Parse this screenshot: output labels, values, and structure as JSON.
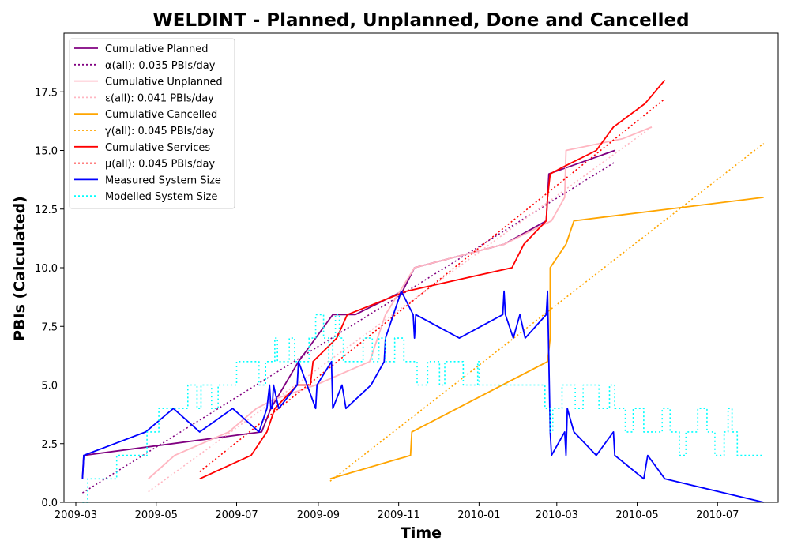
{
  "chart_data": {
    "type": "line",
    "title": "WELDINT - Planned, Unplanned, Done  and Cancelled",
    "xlabel": "Time",
    "ylabel": "PBIs (Calculated)",
    "xlim": [
      "2009-02-20",
      "2010-08-16"
    ],
    "ylim": [
      0,
      20
    ],
    "x_ticks": [
      "2009-03",
      "2009-05",
      "2009-07",
      "2009-09",
      "2009-11",
      "2010-01",
      "2010-03",
      "2010-05",
      "2010-07"
    ],
    "x_tick_dates": [
      "2009-03-01",
      "2009-05-01",
      "2009-07-01",
      "2009-09-01",
      "2009-11-01",
      "2010-01-01",
      "2010-03-01",
      "2010-05-01",
      "2010-07-01"
    ],
    "y_ticks": [
      "0.0",
      "2.5",
      "5.0",
      "7.5",
      "10.0",
      "12.5",
      "15.0",
      "17.5"
    ],
    "y_tick_values": [
      0,
      2.5,
      5,
      7.5,
      10,
      12.5,
      15,
      17.5
    ],
    "grid": false,
    "legend_position": "top-left",
    "series": [
      {
        "name": "Cumulative Planned",
        "color": "#800080",
        "style": "solid",
        "points": [
          [
            "2009-03-06",
            1
          ],
          [
            "2009-03-07",
            2
          ],
          [
            "2009-07-20",
            3
          ],
          [
            "2009-07-27",
            4
          ],
          [
            "2009-08-17",
            6
          ],
          [
            "2009-08-30",
            7
          ],
          [
            "2009-09-12",
            8
          ],
          [
            "2009-09-21",
            8
          ],
          [
            "2009-09-29",
            8
          ],
          [
            "2009-11-04",
            9
          ],
          [
            "2009-11-13",
            10
          ],
          [
            "2010-01-20",
            11
          ],
          [
            "2010-02-21",
            12
          ],
          [
            "2010-02-23",
            14
          ],
          [
            "2010-04-14",
            15
          ]
        ]
      },
      {
        "name": "α(all): 0.035 PBIs/day",
        "color": "#800080",
        "style": "dotted",
        "points": [
          [
            "2009-03-06",
            0.4
          ],
          [
            "2010-04-14",
            14.5
          ]
        ]
      },
      {
        "name": "Cumulative Unplanned",
        "color": "#ffb6c1",
        "style": "solid",
        "points": [
          [
            "2009-04-25",
            1
          ],
          [
            "2009-05-15",
            2
          ],
          [
            "2009-06-25",
            3
          ],
          [
            "2009-07-16",
            4
          ],
          [
            "2009-07-30",
            4.4
          ],
          [
            "2009-08-30",
            5
          ],
          [
            "2009-10-10",
            6
          ],
          [
            "2009-10-22",
            8
          ],
          [
            "2009-11-02",
            9
          ],
          [
            "2009-11-13",
            10
          ],
          [
            "2010-01-20",
            11
          ],
          [
            "2010-02-25",
            12
          ],
          [
            "2010-03-07",
            13
          ],
          [
            "2010-03-08",
            15
          ],
          [
            "2010-04-20",
            15.5
          ],
          [
            "2010-05-12",
            16
          ]
        ]
      },
      {
        "name": "ε(all): 0.041 PBIs/day",
        "color": "#ffb6c1",
        "style": "dotted",
        "points": [
          [
            "2009-04-25",
            0.45
          ],
          [
            "2010-05-12",
            16
          ]
        ]
      },
      {
        "name": "Cumulative Cancelled",
        "color": "#ffa500",
        "style": "solid",
        "points": [
          [
            "2009-09-10",
            1
          ],
          [
            "2009-11-10",
            2
          ],
          [
            "2009-11-11",
            3
          ],
          [
            "2010-02-22",
            6
          ],
          [
            "2010-02-24",
            7
          ],
          [
            "2010-02-24",
            10
          ],
          [
            "2010-03-08",
            11
          ],
          [
            "2010-03-14",
            12
          ],
          [
            "2010-08-05",
            13
          ]
        ]
      },
      {
        "name": "γ(all): 0.045 PBIs/day",
        "color": "#ffa500",
        "style": "dotted",
        "points": [
          [
            "2009-09-10",
            0.9
          ],
          [
            "2010-08-05",
            15.3
          ]
        ]
      },
      {
        "name": "Cumulative Services",
        "color": "#ff0000",
        "style": "solid",
        "points": [
          [
            "2009-06-03",
            1
          ],
          [
            "2009-07-12",
            2
          ],
          [
            "2009-07-24",
            3
          ],
          [
            "2009-07-30",
            4
          ],
          [
            "2009-08-16",
            5
          ],
          [
            "2009-08-26",
            5
          ],
          [
            "2009-08-28",
            6
          ],
          [
            "2009-09-15",
            7
          ],
          [
            "2009-09-23",
            8
          ],
          [
            "2009-11-07",
            9
          ],
          [
            "2010-01-26",
            10
          ],
          [
            "2010-02-04",
            11
          ],
          [
            "2010-02-21",
            12
          ],
          [
            "2010-02-22",
            13
          ],
          [
            "2010-02-24",
            14
          ],
          [
            "2010-03-06",
            14.3
          ],
          [
            "2010-03-31",
            15
          ],
          [
            "2010-04-13",
            16
          ],
          [
            "2010-05-07",
            17
          ],
          [
            "2010-05-22",
            18
          ]
        ]
      },
      {
        "name": "μ(all): 0.045 PBIs/day",
        "color": "#ff0000",
        "style": "dotted",
        "points": [
          [
            "2009-06-03",
            1.3
          ],
          [
            "2010-05-22",
            17.2
          ]
        ]
      },
      {
        "name": "Measured System Size",
        "color": "#0000ff",
        "style": "solid",
        "points": [
          [
            "2009-03-06",
            1
          ],
          [
            "2009-03-07",
            2
          ],
          [
            "2009-04-23",
            3
          ],
          [
            "2009-05-14",
            4
          ],
          [
            "2009-06-03",
            3
          ],
          [
            "2009-06-28",
            4
          ],
          [
            "2009-07-18",
            3
          ],
          [
            "2009-07-24",
            4
          ],
          [
            "2009-07-26",
            5
          ],
          [
            "2009-07-27",
            4
          ],
          [
            "2009-07-28",
            4
          ],
          [
            "2009-07-29",
            5
          ],
          [
            "2009-08-02",
            4
          ],
          [
            "2009-08-16",
            5
          ],
          [
            "2009-08-17",
            6
          ],
          [
            "2009-08-30",
            4
          ],
          [
            "2009-08-31",
            5
          ],
          [
            "2009-09-11",
            6
          ],
          [
            "2009-09-12",
            4
          ],
          [
            "2009-09-19",
            5
          ],
          [
            "2009-09-22",
            4
          ],
          [
            "2009-10-11",
            5
          ],
          [
            "2009-10-21",
            6
          ],
          [
            "2009-10-22",
            7
          ],
          [
            "2009-11-03",
            9
          ],
          [
            "2009-11-12",
            8
          ],
          [
            "2009-11-13",
            7
          ],
          [
            "2009-11-14",
            8
          ],
          [
            "2009-12-17",
            7
          ],
          [
            "2010-01-19",
            8
          ],
          [
            "2010-01-20",
            9
          ],
          [
            "2010-01-21",
            8
          ],
          [
            "2010-01-27",
            7
          ],
          [
            "2010-02-01",
            8
          ],
          [
            "2010-02-05",
            7
          ],
          [
            "2010-02-21",
            8
          ],
          [
            "2010-02-22",
            9
          ],
          [
            "2010-02-23",
            6
          ],
          [
            "2010-02-24",
            3
          ],
          [
            "2010-02-25",
            2
          ],
          [
            "2010-03-07",
            3
          ],
          [
            "2010-03-08",
            2
          ],
          [
            "2010-03-09",
            4
          ],
          [
            "2010-03-14",
            3
          ],
          [
            "2010-03-31",
            2
          ],
          [
            "2010-04-13",
            3
          ],
          [
            "2010-04-14",
            2
          ],
          [
            "2010-05-06",
            1
          ],
          [
            "2010-05-09",
            2
          ],
          [
            "2010-05-22",
            1
          ],
          [
            "2010-08-05",
            0
          ]
        ]
      },
      {
        "name": "Modelled System Size",
        "color": "#00ffff",
        "style": "dotted",
        "steps": [
          [
            "2009-03-06",
            0
          ],
          [
            "2009-03-10",
            1
          ],
          [
            "2009-04-01",
            2
          ],
          [
            "2009-04-24",
            3
          ],
          [
            "2009-05-03",
            4
          ],
          [
            "2009-05-25",
            5
          ],
          [
            "2009-06-01",
            4
          ],
          [
            "2009-06-04",
            5
          ],
          [
            "2009-06-12",
            4
          ],
          [
            "2009-06-17",
            5
          ],
          [
            "2009-07-01",
            6
          ],
          [
            "2009-07-10",
            6
          ],
          [
            "2009-07-18",
            5
          ],
          [
            "2009-07-23",
            6
          ],
          [
            "2009-07-30",
            7
          ],
          [
            "2009-08-01",
            6
          ],
          [
            "2009-08-10",
            7
          ],
          [
            "2009-08-14",
            6
          ],
          [
            "2009-08-25",
            7
          ],
          [
            "2009-08-30",
            8
          ],
          [
            "2009-09-05",
            7
          ],
          [
            "2009-09-09",
            6
          ],
          [
            "2009-09-12",
            7
          ],
          [
            "2009-09-14",
            8
          ],
          [
            "2009-09-17",
            7
          ],
          [
            "2009-09-20",
            6
          ],
          [
            "2009-09-24",
            6
          ],
          [
            "2009-10-05",
            7
          ],
          [
            "2009-10-12",
            6
          ],
          [
            "2009-10-17",
            7
          ],
          [
            "2009-10-22",
            6
          ],
          [
            "2009-10-29",
            7
          ],
          [
            "2009-11-05",
            6
          ],
          [
            "2009-11-15",
            5
          ],
          [
            "2009-11-23",
            6
          ],
          [
            "2009-12-02",
            5
          ],
          [
            "2009-12-06",
            6
          ],
          [
            "2009-12-20",
            5
          ],
          [
            "2009-12-31",
            6
          ],
          [
            "2010-01-01",
            5
          ],
          [
            "2010-02-20",
            4
          ],
          [
            "2010-02-24",
            3
          ],
          [
            "2010-02-26",
            4
          ],
          [
            "2010-03-05",
            5
          ],
          [
            "2010-03-15",
            4
          ],
          [
            "2010-03-21",
            5
          ],
          [
            "2010-04-02",
            4
          ],
          [
            "2010-04-10",
            5
          ],
          [
            "2010-04-14",
            4
          ],
          [
            "2010-04-22",
            3
          ],
          [
            "2010-04-28",
            4
          ],
          [
            "2010-05-06",
            3
          ],
          [
            "2010-05-20",
            4
          ],
          [
            "2010-05-26",
            3
          ],
          [
            "2010-06-02",
            2
          ],
          [
            "2010-06-07",
            3
          ],
          [
            "2010-06-16",
            4
          ],
          [
            "2010-06-23",
            3
          ],
          [
            "2010-06-29",
            2
          ],
          [
            "2010-07-06",
            3
          ],
          [
            "2010-07-09",
            4
          ],
          [
            "2010-07-12",
            3
          ],
          [
            "2010-07-16",
            2
          ],
          [
            "2010-08-05",
            2
          ]
        ]
      }
    ]
  }
}
